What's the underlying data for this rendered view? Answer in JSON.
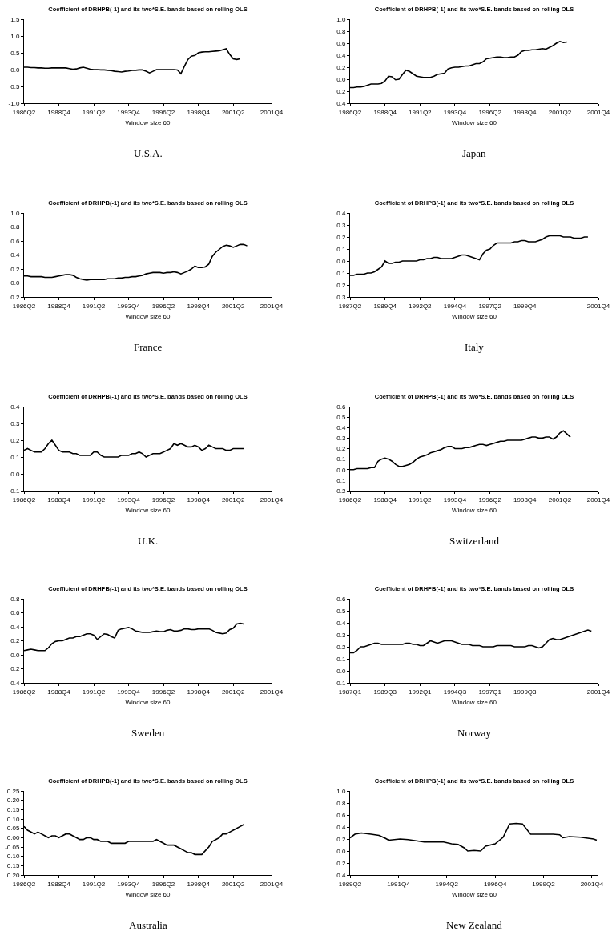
{
  "chart_data": [
    {
      "type": "line",
      "title": "Coefficient of DRHPB(-1) and its two*S.E. bands based on rolling OLS",
      "xlabel": "Window size 60",
      "annotations": [
        "U.S.A."
      ],
      "color": "#000000",
      "categories": [
        "1986Q2",
        null,
        null,
        null,
        null,
        null,
        null,
        null,
        null,
        null,
        "1988Q4",
        null,
        null,
        null,
        null,
        null,
        null,
        null,
        null,
        null,
        "1991Q2",
        null,
        null,
        null,
        null,
        null,
        null,
        null,
        null,
        null,
        "1993Q4",
        null,
        null,
        null,
        null,
        null,
        null,
        null,
        null,
        null,
        "1996Q2",
        null,
        null,
        null,
        null,
        null,
        null,
        null,
        null,
        null,
        "1998Q4",
        null,
        null,
        null,
        null,
        null,
        null,
        null,
        null,
        null,
        "2001Q2",
        null,
        null,
        null,
        null,
        null,
        null,
        null,
        null,
        null,
        null,
        "2001Q4"
      ],
      "values": [
        0.07,
        0.07,
        0.06,
        0.06,
        0.05,
        0.05,
        0.04,
        0.04,
        0.05,
        0.05,
        0.05,
        0.05,
        0.05,
        0.03,
        0.01,
        0.02,
        0.05,
        0.07,
        0.04,
        0.01,
        0,
        0,
        -0.01,
        -0.01,
        -0.02,
        -0.03,
        -0.05,
        -0.06,
        -0.07,
        -0.05,
        -0.04,
        -0.02,
        -0.02,
        -0.01,
        -0.01,
        -0.05,
        -0.1,
        -0.05,
        0,
        0,
        0,
        0,
        0,
        0,
        -0.01,
        -0.12,
        0.1,
        0.3,
        0.4,
        0.42,
        0.5,
        0.52,
        0.53,
        0.53,
        0.54,
        0.55,
        0.56,
        0.59,
        0.62,
        0.45,
        0.32,
        0.3,
        0.32,
        null,
        null,
        null,
        null,
        null,
        null,
        null,
        null,
        null
      ],
      "ylim": [
        -1.0,
        1.5
      ],
      "yticks": [
        {
          "value": 1.5,
          "label": "1.5"
        },
        {
          "value": 1.0,
          "label": "1.0"
        },
        {
          "value": 0.5,
          "label": "0.5"
        },
        {
          "value": 0,
          "label": "0.0"
        },
        {
          "value": -0.5,
          "label": "0.5"
        },
        {
          "value": -1.0,
          "label": "-1.0"
        }
      ]
    },
    {
      "type": "line",
      "title": "Coefficient of DRHPB(-1) and its two*S.E. bands based on rolling OLS",
      "xlabel": "Window size 60",
      "annotations": [
        "Japan"
      ],
      "color": "#000000",
      "categories": [
        "1986Q2",
        null,
        null,
        null,
        null,
        null,
        null,
        null,
        null,
        null,
        "1988Q4",
        null,
        null,
        null,
        null,
        null,
        null,
        null,
        null,
        null,
        "1991Q2",
        null,
        null,
        null,
        null,
        null,
        null,
        null,
        null,
        null,
        "1993Q4",
        null,
        null,
        null,
        null,
        null,
        null,
        null,
        null,
        null,
        "1996Q2",
        null,
        null,
        null,
        null,
        null,
        null,
        null,
        null,
        null,
        "1998Q4",
        null,
        null,
        null,
        null,
        null,
        null,
        null,
        null,
        null,
        "2001Q2",
        null,
        null,
        null,
        null,
        null,
        null,
        null,
        null,
        null,
        null,
        "2001Q4"
      ],
      "values": [
        -0.14,
        -0.14,
        -0.13,
        -0.13,
        -0.12,
        -0.1,
        -0.08,
        -0.08,
        -0.08,
        -0.07,
        -0.03,
        0.05,
        0.04,
        -0.01,
        0,
        0.08,
        0.15,
        0.13,
        0.09,
        0.05,
        0.04,
        0.03,
        0.03,
        0.03,
        0.05,
        0.08,
        0.09,
        0.1,
        0.17,
        0.19,
        0.2,
        0.2,
        0.21,
        0.22,
        0.22,
        0.24,
        0.26,
        0.26,
        0.29,
        0.34,
        0.35,
        0.36,
        0.37,
        0.37,
        0.36,
        0.36,
        0.37,
        0.37,
        0.4,
        0.46,
        0.48,
        0.48,
        0.49,
        0.49,
        0.5,
        0.51,
        0.5,
        0.53,
        0.56,
        0.6,
        0.63,
        0.61,
        0.62,
        null,
        null,
        null,
        null,
        null,
        null,
        null,
        null,
        null
      ],
      "ylim": [
        -0.4,
        1.0
      ],
      "yticks": [
        {
          "value": 1.0,
          "label": "1.0"
        },
        {
          "value": 0.8,
          "label": "0.8"
        },
        {
          "value": 0.6,
          "label": "0.6"
        },
        {
          "value": 0.4,
          "label": "0.4"
        },
        {
          "value": 0.2,
          "label": "0.2"
        },
        {
          "value": 0,
          "label": "0.0"
        },
        {
          "value": -0.2,
          "label": "0.2"
        },
        {
          "value": -0.4,
          "label": "0.4"
        }
      ]
    },
    {
      "type": "line",
      "title": "Coefficient of DRHPB(-1) and its two*S.E. bands based on rolling OLS",
      "xlabel": "Window size 60",
      "annotations": [
        "France"
      ],
      "color": "#000000",
      "categories": [
        "1986Q2",
        null,
        null,
        null,
        null,
        null,
        null,
        null,
        null,
        null,
        "1988Q4",
        null,
        null,
        null,
        null,
        null,
        null,
        null,
        null,
        null,
        "1991Q2",
        null,
        null,
        null,
        null,
        null,
        null,
        null,
        null,
        null,
        "1993Q4",
        null,
        null,
        null,
        null,
        null,
        null,
        null,
        null,
        null,
        "1996Q2",
        null,
        null,
        null,
        null,
        null,
        null,
        null,
        null,
        null,
        "1998Q4",
        null,
        null,
        null,
        null,
        null,
        null,
        null,
        null,
        null,
        "2001Q2",
        null,
        null,
        null,
        null,
        null,
        null,
        null,
        null,
        null,
        null,
        "2001Q4"
      ],
      "values": [
        0.1,
        0.1,
        0.09,
        0.09,
        0.09,
        0.09,
        0.08,
        0.08,
        0.08,
        0.09,
        0.1,
        0.11,
        0.12,
        0.12,
        0.11,
        0.08,
        0.06,
        0.05,
        0.04,
        0.05,
        0.05,
        0.05,
        0.05,
        0.05,
        0.06,
        0.06,
        0.06,
        0.07,
        0.07,
        0.08,
        0.08,
        0.09,
        0.09,
        0.1,
        0.11,
        0.13,
        0.14,
        0.15,
        0.15,
        0.15,
        0.14,
        0.15,
        0.15,
        0.16,
        0.15,
        0.13,
        0.15,
        0.17,
        0.2,
        0.24,
        0.22,
        0.22,
        0.23,
        0.27,
        0.38,
        0.44,
        0.48,
        0.52,
        0.54,
        0.53,
        0.51,
        0.53,
        0.55,
        0.55,
        0.53,
        null,
        null,
        null,
        null,
        null,
        null,
        null
      ],
      "ylim": [
        -0.2,
        1.0
      ],
      "yticks": [
        {
          "value": 1.0,
          "label": "1.0"
        },
        {
          "value": 0.8,
          "label": "0.8"
        },
        {
          "value": 0.6,
          "label": "0.6"
        },
        {
          "value": 0.4,
          "label": "0.4"
        },
        {
          "value": 0.2,
          "label": "0.2"
        },
        {
          "value": 0,
          "label": "0.0"
        },
        {
          "value": -0.2,
          "label": "0.2"
        }
      ]
    },
    {
      "type": "line",
      "title": "Coefficient of DRHPB(-1) and its two*S.E. bands based on rolling OLS",
      "xlabel": "Window size 60",
      "annotations": [
        "Italy"
      ],
      "color": "#000000",
      "categories": [
        "1987Q2",
        null,
        null,
        null,
        null,
        null,
        null,
        null,
        null,
        null,
        "1989Q4",
        null,
        null,
        null,
        null,
        null,
        null,
        null,
        null,
        null,
        "1992Q2",
        null,
        null,
        null,
        null,
        null,
        null,
        null,
        null,
        null,
        "1994Q4",
        null,
        null,
        null,
        null,
        null,
        null,
        null,
        null,
        null,
        "1997Q2",
        null,
        null,
        null,
        null,
        null,
        null,
        null,
        null,
        null,
        "1999Q4",
        null,
        null,
        null,
        null,
        null,
        null,
        null,
        null,
        null,
        null,
        null,
        null,
        null,
        null,
        null,
        null,
        null,
        null,
        null,
        null,
        "2001Q4"
      ],
      "values": [
        -0.12,
        -0.12,
        -0.11,
        -0.11,
        -0.11,
        -0.1,
        -0.1,
        -0.09,
        -0.07,
        -0.05,
        0,
        -0.02,
        -0.02,
        -0.01,
        -0.01,
        0,
        0,
        0,
        0,
        0,
        0.01,
        0.01,
        0.02,
        0.02,
        0.03,
        0.03,
        0.02,
        0.02,
        0.02,
        0.02,
        0.03,
        0.04,
        0.05,
        0.05,
        0.04,
        0.03,
        0.02,
        0.01,
        0.06,
        0.09,
        0.1,
        0.13,
        0.15,
        0.15,
        0.15,
        0.15,
        0.15,
        0.16,
        0.16,
        0.17,
        0.17,
        0.16,
        0.16,
        0.16,
        0.17,
        0.18,
        0.2,
        0.21,
        0.21,
        0.21,
        0.21,
        0.2,
        0.2,
        0.2,
        0.19,
        0.19,
        0.19,
        0.2,
        0.2,
        null,
        null,
        null
      ],
      "ylim": [
        -0.3,
        0.4
      ],
      "yticks": [
        {
          "value": 0.4,
          "label": "0.4"
        },
        {
          "value": 0.3,
          "label": "0.3"
        },
        {
          "value": 0.2,
          "label": "0.2"
        },
        {
          "value": 0.1,
          "label": "0.1"
        },
        {
          "value": 0,
          "label": "0.0"
        },
        {
          "value": -0.1,
          "label": "0.1"
        },
        {
          "value": -0.2,
          "label": "0.2"
        },
        {
          "value": -0.3,
          "label": "0.3"
        }
      ]
    },
    {
      "type": "line",
      "title": "Coefficient of DRHPB(-1) and its two*S.E. bands based on rolling OLS",
      "xlabel": "Window size 60",
      "annotations": [
        "U.K."
      ],
      "color": "#000000",
      "categories": [
        "1986Q2",
        null,
        null,
        null,
        null,
        null,
        null,
        null,
        null,
        null,
        "1988Q4",
        null,
        null,
        null,
        null,
        null,
        null,
        null,
        null,
        null,
        "1991Q2",
        null,
        null,
        null,
        null,
        null,
        null,
        null,
        null,
        null,
        "1993Q4",
        null,
        null,
        null,
        null,
        null,
        null,
        null,
        null,
        null,
        "1996Q2",
        null,
        null,
        null,
        null,
        null,
        null,
        null,
        null,
        null,
        "1998Q4",
        null,
        null,
        null,
        null,
        null,
        null,
        null,
        null,
        null,
        "2001Q2",
        null,
        null,
        null,
        null,
        null,
        null,
        null,
        null,
        null,
        null,
        "2001Q4"
      ],
      "values": [
        0.14,
        0.15,
        0.14,
        0.13,
        0.13,
        0.13,
        0.15,
        0.18,
        0.2,
        0.17,
        0.14,
        0.13,
        0.13,
        0.13,
        0.12,
        0.12,
        0.11,
        0.11,
        0.11,
        0.11,
        0.13,
        0.13,
        0.11,
        0.1,
        0.1,
        0.1,
        0.1,
        0.1,
        0.11,
        0.11,
        0.11,
        0.12,
        0.12,
        0.13,
        0.12,
        0.1,
        0.11,
        0.12,
        0.12,
        0.12,
        0.13,
        0.14,
        0.15,
        0.18,
        0.17,
        0.18,
        0.17,
        0.16,
        0.16,
        0.17,
        0.16,
        0.14,
        0.15,
        0.17,
        0.16,
        0.15,
        0.15,
        0.15,
        0.14,
        0.14,
        0.15,
        0.15,
        0.15,
        0.15,
        null,
        null,
        null,
        null,
        null,
        null,
        null,
        null
      ],
      "ylim": [
        -0.1,
        0.4
      ],
      "yticks": [
        {
          "value": 0.4,
          "label": "0.4"
        },
        {
          "value": 0.3,
          "label": "0.3"
        },
        {
          "value": 0.2,
          "label": "0.2"
        },
        {
          "value": 0.1,
          "label": "0.1"
        },
        {
          "value": 0,
          "label": "0.0"
        },
        {
          "value": -0.1,
          "label": "0.1"
        }
      ]
    },
    {
      "type": "line",
      "title": "Coefficient of DRHPB(-1) and its two*S.E. bands based on rolling OLS",
      "xlabel": "Window size 60",
      "annotations": [
        "Switzerland"
      ],
      "color": "#000000",
      "categories": [
        "1986Q2",
        null,
        null,
        null,
        null,
        null,
        null,
        null,
        null,
        null,
        "1988Q4",
        null,
        null,
        null,
        null,
        null,
        null,
        null,
        null,
        null,
        "1991Q2",
        null,
        null,
        null,
        null,
        null,
        null,
        null,
        null,
        null,
        "1993Q4",
        null,
        null,
        null,
        null,
        null,
        null,
        null,
        null,
        null,
        "1996Q2",
        null,
        null,
        null,
        null,
        null,
        null,
        null,
        null,
        null,
        "1998Q4",
        null,
        null,
        null,
        null,
        null,
        null,
        null,
        null,
        null,
        "2001Q2",
        null,
        null,
        null,
        null,
        null,
        null,
        null,
        null,
        null,
        null,
        "2001Q4"
      ],
      "values": [
        0,
        0,
        0.01,
        0.01,
        0.01,
        0.01,
        0.02,
        0.02,
        0.08,
        0.1,
        0.11,
        0.1,
        0.08,
        0.05,
        0.03,
        0.03,
        0.04,
        0.05,
        0.07,
        0.1,
        0.12,
        0.13,
        0.14,
        0.16,
        0.17,
        0.18,
        0.19,
        0.21,
        0.22,
        0.22,
        0.2,
        0.2,
        0.2,
        0.21,
        0.21,
        0.22,
        0.23,
        0.24,
        0.24,
        0.23,
        0.24,
        0.25,
        0.26,
        0.27,
        0.27,
        0.28,
        0.28,
        0.28,
        0.28,
        0.28,
        0.29,
        0.3,
        0.31,
        0.31,
        0.3,
        0.3,
        0.31,
        0.31,
        0.29,
        0.31,
        0.35,
        0.37,
        0.34,
        0.31,
        null,
        null,
        null,
        null,
        null,
        null,
        null,
        null
      ],
      "ylim": [
        -0.2,
        0.6
      ],
      "yticks": [
        {
          "value": 0.6,
          "label": "0.6"
        },
        {
          "value": 0.5,
          "label": "0.5"
        },
        {
          "value": 0.4,
          "label": "0.4"
        },
        {
          "value": 0.3,
          "label": "0.3"
        },
        {
          "value": 0.2,
          "label": "0.2"
        },
        {
          "value": 0.1,
          "label": "0.1"
        },
        {
          "value": 0,
          "label": "0.0"
        },
        {
          "value": -0.1,
          "label": "0.1"
        },
        {
          "value": -0.2,
          "label": "0.2"
        }
      ]
    },
    {
      "type": "line",
      "title": "Coefficient of DRHPB(-1) and its two*S.E. bands based on rolling OLS",
      "xlabel": "Window size 60",
      "annotations": [
        "Sweden"
      ],
      "color": "#000000",
      "categories": [
        "1986Q2",
        null,
        null,
        null,
        null,
        null,
        null,
        null,
        null,
        null,
        "1988Q4",
        null,
        null,
        null,
        null,
        null,
        null,
        null,
        null,
        null,
        "1991Q2",
        null,
        null,
        null,
        null,
        null,
        null,
        null,
        null,
        null,
        "1993Q4",
        null,
        null,
        null,
        null,
        null,
        null,
        null,
        null,
        null,
        "1996Q2",
        null,
        null,
        null,
        null,
        null,
        null,
        null,
        null,
        null,
        "1998Q4",
        null,
        null,
        null,
        null,
        null,
        null,
        null,
        null,
        null,
        "2001Q2",
        null,
        null,
        null,
        null,
        null,
        null,
        null,
        null,
        null,
        null,
        "2001Q4"
      ],
      "values": [
        0.06,
        0.07,
        0.08,
        0.07,
        0.06,
        0.06,
        0.06,
        0.1,
        0.16,
        0.19,
        0.2,
        0.2,
        0.22,
        0.24,
        0.24,
        0.26,
        0.26,
        0.28,
        0.3,
        0.3,
        0.28,
        0.22,
        0.26,
        0.3,
        0.29,
        0.26,
        0.24,
        0.35,
        0.37,
        0.38,
        0.39,
        0.37,
        0.34,
        0.33,
        0.32,
        0.32,
        0.32,
        0.33,
        0.34,
        0.33,
        0.33,
        0.35,
        0.36,
        0.34,
        0.34,
        0.35,
        0.37,
        0.37,
        0.36,
        0.36,
        0.37,
        0.37,
        0.37,
        0.37,
        0.35,
        0.32,
        0.31,
        0.3,
        0.31,
        0.36,
        0.38,
        0.44,
        0.45,
        0.44,
        null,
        null,
        null,
        null,
        null,
        null,
        null,
        null
      ],
      "ylim": [
        -0.4,
        0.8
      ],
      "yticks": [
        {
          "value": 0.8,
          "label": "0.8"
        },
        {
          "value": 0.6,
          "label": "0.6"
        },
        {
          "value": 0.4,
          "label": "0.4"
        },
        {
          "value": 0.2,
          "label": "0.2"
        },
        {
          "value": 0,
          "label": "0.0"
        },
        {
          "value": -0.2,
          "label": "0.2"
        },
        {
          "value": -0.4,
          "label": "0.4"
        }
      ]
    },
    {
      "type": "line",
      "title": "Coefficient of DRHPB(-1) and its two*S.E. bands based on rolling OLS",
      "xlabel": "Window size 60",
      "annotations": [
        "Norway"
      ],
      "color": "#000000",
      "categories": [
        "1987Q1",
        null,
        null,
        null,
        null,
        null,
        null,
        null,
        null,
        null,
        "1989Q3",
        null,
        null,
        null,
        null,
        null,
        null,
        null,
        null,
        null,
        "1992Q1",
        null,
        null,
        null,
        null,
        null,
        null,
        null,
        null,
        null,
        "1994Q3",
        null,
        null,
        null,
        null,
        null,
        null,
        null,
        null,
        null,
        "1997Q1",
        null,
        null,
        null,
        null,
        null,
        null,
        null,
        null,
        null,
        "1999Q3",
        null,
        null,
        null,
        null,
        null,
        null,
        null,
        null,
        null,
        null,
        null,
        null,
        null,
        null,
        null,
        null,
        null,
        null,
        null,
        null,
        "2001Q4"
      ],
      "values": [
        0.15,
        0.15,
        0.17,
        0.2,
        0.2,
        0.21,
        0.22,
        0.23,
        0.23,
        0.22,
        0.22,
        0.22,
        0.22,
        0.22,
        0.22,
        0.22,
        0.23,
        0.23,
        0.22,
        0.22,
        0.21,
        0.21,
        0.23,
        0.25,
        0.24,
        0.23,
        0.24,
        0.25,
        0.25,
        0.25,
        0.24,
        0.23,
        0.22,
        0.22,
        0.22,
        0.21,
        0.21,
        0.21,
        0.2,
        0.2,
        0.2,
        0.2,
        0.21,
        0.21,
        0.21,
        0.21,
        0.21,
        0.2,
        0.2,
        0.2,
        0.2,
        0.21,
        0.21,
        0.2,
        0.19,
        0.2,
        0.23,
        0.26,
        0.27,
        0.26,
        0.26,
        0.27,
        0.28,
        0.29,
        0.3,
        0.31,
        0.32,
        0.33,
        0.34,
        0.33,
        null,
        null
      ],
      "ylim": [
        -0.1,
        0.6
      ],
      "yticks": [
        {
          "value": 0.6,
          "label": "0.6"
        },
        {
          "value": 0.5,
          "label": "0.5"
        },
        {
          "value": 0.4,
          "label": "0.4"
        },
        {
          "value": 0.3,
          "label": "0.3"
        },
        {
          "value": 0.2,
          "label": "0.2"
        },
        {
          "value": 0.1,
          "label": "0.1"
        },
        {
          "value": 0,
          "label": "0.0"
        },
        {
          "value": -0.1,
          "label": "0.1"
        }
      ]
    },
    {
      "type": "line",
      "title": "Coefficient of DRHPB(-1) and its two*S.E. bands based on rolling OLS",
      "xlabel": "Window size 60",
      "annotations": [
        "Australia"
      ],
      "color": "#000000",
      "categories": [
        "1986Q2",
        null,
        null,
        null,
        null,
        null,
        null,
        null,
        null,
        null,
        "1988Q4",
        null,
        null,
        null,
        null,
        null,
        null,
        null,
        null,
        null,
        "1991Q2",
        null,
        null,
        null,
        null,
        null,
        null,
        null,
        null,
        null,
        "1993Q4",
        null,
        null,
        null,
        null,
        null,
        null,
        null,
        null,
        null,
        "1996Q2",
        null,
        null,
        null,
        null,
        null,
        null,
        null,
        null,
        null,
        "1998Q4",
        null,
        null,
        null,
        null,
        null,
        null,
        null,
        null,
        null,
        "2001Q2",
        null,
        null,
        null,
        null,
        null,
        null,
        null,
        null,
        null,
        null,
        "2001Q4"
      ],
      "values": [
        0.06,
        0.04,
        0.03,
        0.02,
        0.03,
        0.02,
        0.01,
        0,
        0.01,
        0.01,
        0,
        0.01,
        0.02,
        0.02,
        0.01,
        0,
        -0.01,
        -0.01,
        0,
        0,
        -0.01,
        -0.01,
        -0.02,
        -0.02,
        -0.02,
        -0.03,
        -0.03,
        -0.03,
        -0.03,
        -0.03,
        -0.02,
        -0.02,
        -0.02,
        -0.02,
        -0.02,
        -0.02,
        -0.02,
        -0.02,
        -0.01,
        -0.02,
        -0.03,
        -0.04,
        -0.04,
        -0.04,
        -0.05,
        -0.06,
        -0.07,
        -0.08,
        -0.08,
        -0.09,
        -0.09,
        -0.09,
        -0.07,
        -0.05,
        -0.02,
        -0.01,
        0,
        0.02,
        0.02,
        0.03,
        0.04,
        0.05,
        0.06,
        0.07,
        null,
        null,
        null,
        null,
        null,
        null,
        null,
        null
      ],
      "ylim": [
        -0.2,
        0.25
      ],
      "yticks": [
        {
          "value": 0.25,
          "label": "0.25"
        },
        {
          "value": 0.2,
          "label": "0.20"
        },
        {
          "value": 0.15,
          "label": "0.15"
        },
        {
          "value": 0.1,
          "label": "0.10"
        },
        {
          "value": 0.05,
          "label": "0.05"
        },
        {
          "value": 0,
          "label": "0.00"
        },
        {
          "value": -0.05,
          "label": "-0.05"
        },
        {
          "value": -0.1,
          "label": "0.10"
        },
        {
          "value": -0.15,
          "label": "0.15"
        },
        {
          "value": -0.2,
          "label": "0.20"
        }
      ]
    },
    {
      "type": "line",
      "title": "Coefficient of DRHPB(-1) and its two*S.E. bands based on rolling OLS",
      "xlabel": "Window size 60",
      "annotations": [
        "New Zealand"
      ],
      "color": "#000000",
      "x": [
        "1989-04",
        "1989-07",
        "1989-11",
        "1990-05",
        "1990-10",
        "1991-02",
        "1991-04",
        "1991-11",
        "1992-04",
        "1992-09",
        "1993-02",
        "1994-02",
        "1994-07",
        "1994-11",
        "1995-03",
        "1995-05",
        "1995-09",
        "1996-01",
        "1996-04",
        "1996-10",
        "1997-03",
        "1997-07",
        "1997-11",
        "1998-03",
        "1998-08",
        "1999-01",
        "1999-10",
        "2000-02",
        "2000-04",
        "2000-08",
        "2001-03",
        "2001-11",
        "2002-01"
      ],
      "values": [
        0.22,
        0.28,
        0.3,
        0.28,
        0.26,
        0.21,
        0.18,
        0.2,
        0.19,
        0.17,
        0.15,
        0.15,
        0.12,
        0.11,
        0.05,
        0.0,
        0.01,
        0.0,
        0.08,
        0.12,
        0.23,
        0.45,
        0.46,
        0.45,
        0.28,
        0.28,
        0.28,
        0.27,
        0.22,
        0.24,
        0.23,
        0.2,
        0.18
      ],
      "xlim": [
        "1989-04",
        "2002-02"
      ],
      "xticks": [
        {
          "value": "1989-04",
          "label": "1989Q2"
        },
        {
          "value": "1991-10",
          "label": "1991Q4"
        },
        {
          "value": "1994-04",
          "label": "1994Q2"
        },
        {
          "value": "1996-10",
          "label": "1996Q4"
        },
        {
          "value": "1999-04",
          "label": "1999Q2"
        },
        {
          "value": "2001-10",
          "label": "2001Q4"
        }
      ],
      "ylim": [
        -0.4,
        1.0
      ],
      "yticks": [
        {
          "value": 1.0,
          "label": "1.0"
        },
        {
          "value": 0.8,
          "label": "0.8"
        },
        {
          "value": 0.6,
          "label": "0.6"
        },
        {
          "value": 0.4,
          "label": "0.4"
        },
        {
          "value": 0.2,
          "label": "0.2"
        },
        {
          "value": 0,
          "label": "0.0"
        },
        {
          "value": -0.2,
          "label": "0.2"
        },
        {
          "value": -0.4,
          "label": "0.4"
        }
      ]
    }
  ]
}
